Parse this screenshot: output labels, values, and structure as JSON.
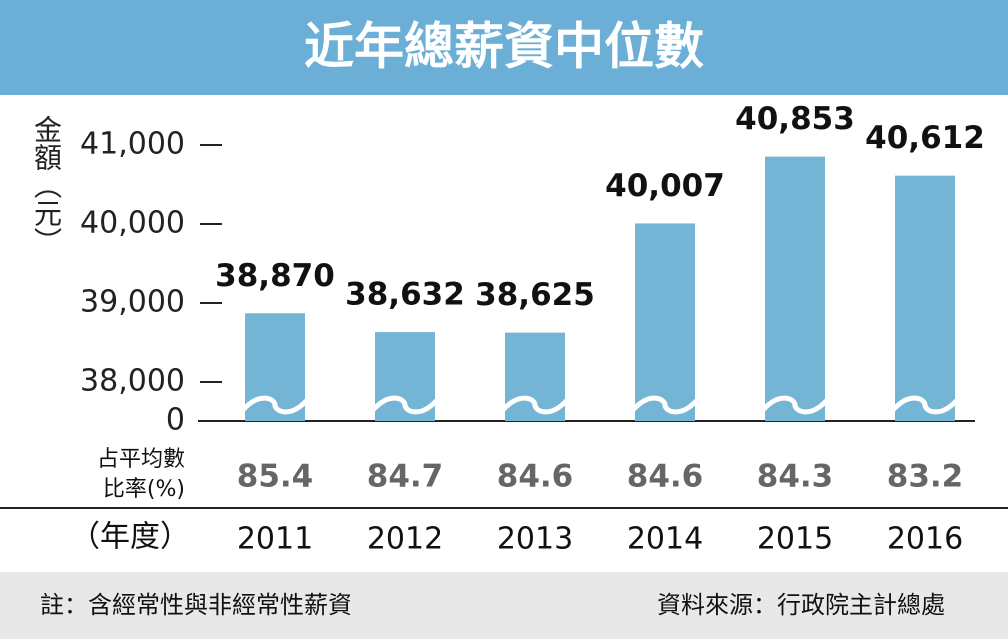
{
  "chart_data": {
    "type": "bar",
    "title": "近年總薪資中位數",
    "ylabel": "金額（元）",
    "xlabel": "（年度）",
    "categories": [
      "2011",
      "2012",
      "2013",
      "2014",
      "2015",
      "2016"
    ],
    "values": [
      38870,
      38632,
      38625,
      40007,
      40853,
      40612
    ],
    "value_labels": [
      "38,870",
      "38,632",
      "38,625",
      "40,007",
      "40,853",
      "40,612"
    ],
    "color": "#74b4d4",
    "ylim": [
      0,
      41000
    ],
    "y_break": [
      0,
      38000
    ],
    "yticks": [
      {
        "value": 0,
        "label": "0"
      },
      {
        "value": 38000,
        "label": "38,000"
      },
      {
        "value": 39000,
        "label": "39,000"
      },
      {
        "value": 40000,
        "label": "40,000"
      },
      {
        "value": 41000,
        "label": "41,000"
      }
    ],
    "ratio": {
      "label": [
        "占平均數",
        "比率(%)"
      ],
      "values": [
        85.4,
        84.7,
        84.6,
        84.6,
        84.3,
        83.2
      ]
    }
  },
  "footer": {
    "note": "註：含經常性與非經常性薪資",
    "source": "資料來源：行政院主計總處"
  }
}
